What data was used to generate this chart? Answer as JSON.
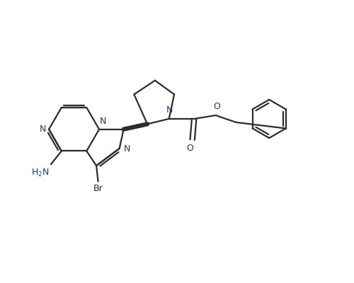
{
  "background_color": "#ffffff",
  "bond_color": "#2c2c2c",
  "line_width": 1.6,
  "figsize": [
    5.0,
    4.0
  ],
  "dpi": 100,
  "xlim": [
    0,
    10
  ],
  "ylim": [
    0,
    8
  ]
}
